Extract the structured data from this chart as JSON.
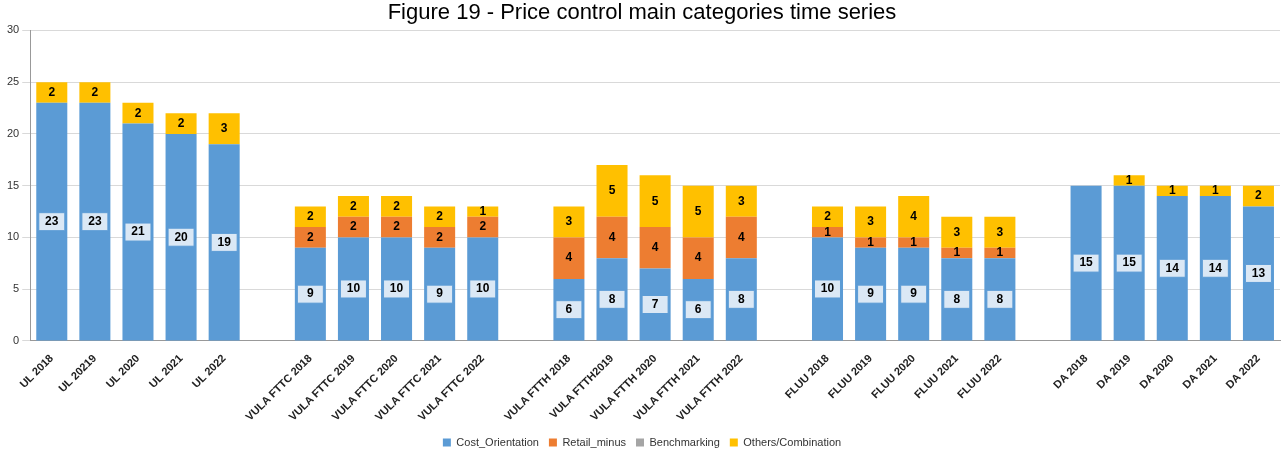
{
  "chart_data": {
    "type": "bar",
    "title": "Figure 19 - Price control main categories time series",
    "stacked": true,
    "categories": [
      "UL 2018",
      "UL 20219",
      "UL 2020",
      "UL 2021",
      "UL 2022",
      null,
      "VULA FTTC 2018",
      "VULA FTTC 2019",
      "VULA FTTC 2020",
      "VULA FTTC 2021",
      "VULA FTTC 2022",
      null,
      "VULA FTTH 2018",
      "VULA FTTH2019",
      "VULA FTTH 2020",
      "VULA FTTH 2021",
      "VULA FTTH 2022",
      null,
      "FLUU 2018",
      "FLUU 2019",
      "FLUU 2020",
      "FLUU 2021",
      "FLUU 2022",
      null,
      "DA 2018",
      "DA 2019",
      "DA 2020",
      "DA 2021",
      "DA 2022"
    ],
    "series": [
      {
        "name": "Cost_Orientation",
        "color": "#5b9bd5",
        "values": [
          23,
          23,
          21,
          20,
          19,
          null,
          9,
          10,
          10,
          9,
          10,
          null,
          6,
          8,
          7,
          6,
          8,
          null,
          10,
          9,
          9,
          8,
          8,
          null,
          15,
          15,
          14,
          14,
          13
        ]
      },
      {
        "name": "Retail_minus",
        "color": "#ed7d31",
        "values": [
          null,
          null,
          null,
          null,
          null,
          null,
          2,
          2,
          2,
          2,
          2,
          null,
          4,
          4,
          4,
          4,
          4,
          null,
          1,
          1,
          1,
          1,
          1,
          null,
          null,
          null,
          null,
          null,
          null
        ]
      },
      {
        "name": "Benchmarking",
        "color": "#a5a5a5",
        "values": [
          null,
          null,
          null,
          null,
          null,
          null,
          null,
          null,
          null,
          null,
          null,
          null,
          null,
          null,
          null,
          null,
          null,
          null,
          null,
          null,
          null,
          null,
          null,
          null,
          null,
          null,
          null,
          null,
          null
        ]
      },
      {
        "name": "Others/Combination",
        "color": "#ffc000",
        "values": [
          2,
          2,
          2,
          2,
          3,
          null,
          2,
          2,
          2,
          2,
          1,
          null,
          3,
          5,
          5,
          5,
          3,
          null,
          2,
          3,
          4,
          3,
          3,
          null,
          null,
          1,
          1,
          1,
          2
        ]
      }
    ],
    "ylim": [
      0,
      30
    ],
    "yticks": [
      0,
      5,
      10,
      15,
      20,
      25,
      30
    ],
    "grid": "y",
    "legend": "bottom",
    "data_labels": true
  }
}
